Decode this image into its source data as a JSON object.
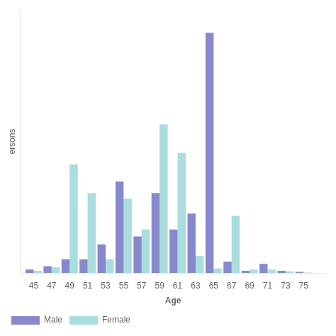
{
  "chart_data": {
    "type": "bar",
    "x": [
      45,
      47,
      49,
      51,
      53,
      55,
      57,
      59,
      61,
      63,
      65,
      67,
      69,
      71,
      73,
      75
    ],
    "series": [
      {
        "name": "Male",
        "color": "#8888cc",
        "values": [
          0.3,
          0.6,
          1.2,
          1.2,
          2.5,
          8.0,
          3.2,
          7.0,
          3.8,
          5.2,
          21.0,
          1.0,
          0.2,
          0.8,
          0.2,
          0.1
        ]
      },
      {
        "name": "Female",
        "color": "#aadddd",
        "values": [
          0.2,
          0.5,
          9.5,
          7.0,
          1.2,
          6.5,
          3.8,
          13.0,
          10.5,
          1.5,
          0.4,
          5.0,
          0.3,
          0.3,
          0.15,
          0.05
        ]
      }
    ],
    "xlabel": "Age",
    "ylabel": "ersons",
    "xlim": [
      43.5,
      77.5
    ],
    "xticks": [
      45,
      47,
      49,
      51,
      53,
      55,
      57,
      59,
      61,
      63,
      65,
      67,
      69,
      71,
      73,
      75
    ],
    "ylim": [
      0,
      23
    ],
    "tick_labels": "x",
    "grid": false,
    "legend": "bottom"
  }
}
